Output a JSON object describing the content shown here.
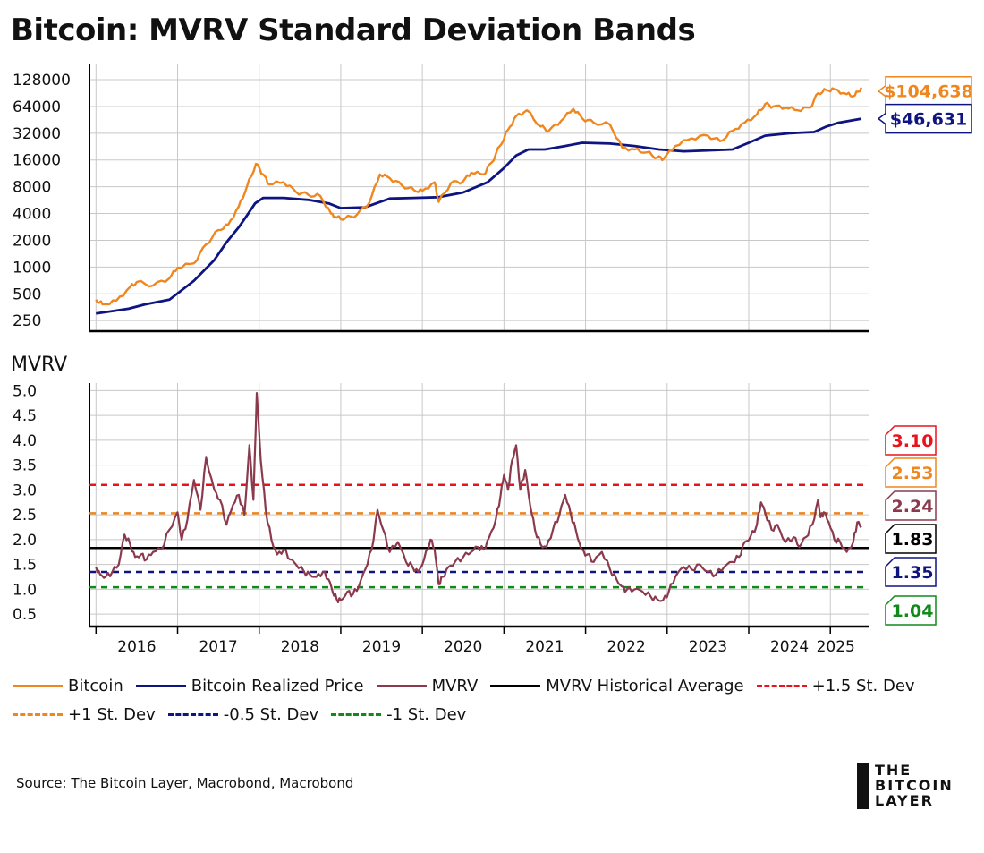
{
  "title": "Bitcoin: MVRV Standard Deviation Bands",
  "colors": {
    "bitcoin": "#F0861E",
    "realized": "#0E1480",
    "mvrv": "#8B3A4E",
    "average": "#000000",
    "plus15": "#E8141C",
    "plus1": "#F0861E",
    "minus05": "#0E1480",
    "minus1": "#118A1B",
    "grid": "#C8C8C8"
  },
  "chart_data": [
    {
      "type": "line",
      "name": "price-panel",
      "yscale": "log2",
      "yticks": [
        250,
        500,
        1000,
        2000,
        4000,
        8000,
        16000,
        32000,
        64000,
        128000
      ],
      "ylim": [
        190,
        190000
      ],
      "xlim": [
        2015.92,
        2025.48
      ],
      "series": [
        {
          "name": "Bitcoin",
          "color_key": "bitcoin",
          "x": [
            2016.0,
            2016.08,
            2016.25,
            2016.42,
            2016.5,
            2016.7,
            2016.9,
            2017.0,
            2017.2,
            2017.35,
            2017.5,
            2017.62,
            2017.75,
            2017.85,
            2017.96,
            2018.05,
            2018.12,
            2018.3,
            2018.45,
            2018.6,
            2018.75,
            2018.88,
            2018.95,
            2019.05,
            2019.2,
            2019.35,
            2019.48,
            2019.6,
            2019.75,
            2019.9,
            2020.0,
            2020.15,
            2020.2,
            2020.35,
            2020.5,
            2020.6,
            2020.75,
            2020.85,
            2020.95,
            2021.05,
            2021.15,
            2021.28,
            2021.45,
            2021.55,
            2021.7,
            2021.85,
            2021.96,
            2022.1,
            2022.3,
            2022.45,
            2022.6,
            2022.75,
            2022.88,
            2022.96,
            2023.1,
            2023.3,
            2023.5,
            2023.65,
            2023.8,
            2023.95,
            2024.1,
            2024.2,
            2024.3,
            2024.45,
            2024.6,
            2024.75,
            2024.85,
            2024.95,
            2025.05,
            2025.2,
            2025.3,
            2025.38
          ],
          "values": [
            430,
            380,
            420,
            600,
            680,
            620,
            750,
            980,
            1100,
            1800,
            2600,
            3000,
            4800,
            8000,
            14500,
            11000,
            8500,
            9000,
            7000,
            6500,
            6300,
            4000,
            3600,
            3500,
            3900,
            5300,
            11000,
            10000,
            8300,
            7300,
            7200,
            9000,
            5400,
            8800,
            9200,
            11500,
            11000,
            15000,
            23000,
            35000,
            50000,
            58000,
            38000,
            34000,
            44000,
            60000,
            47000,
            42000,
            40000,
            22000,
            21000,
            19500,
            17000,
            16600,
            23000,
            28000,
            30000,
            26000,
            34000,
            42000,
            52000,
            68000,
            64000,
            62000,
            58000,
            62000,
            90000,
            98000,
            100000,
            88000,
            85000,
            104638
          ]
        },
        {
          "name": "Bitcoin Realized Price",
          "color_key": "realized",
          "x": [
            2016.0,
            2016.4,
            2016.6,
            2016.9,
            2017.2,
            2017.45,
            2017.6,
            2017.75,
            2017.85,
            2017.95,
            2018.05,
            2018.3,
            2018.6,
            2018.85,
            2019.0,
            2019.3,
            2019.6,
            2019.9,
            2020.2,
            2020.5,
            2020.8,
            2021.0,
            2021.15,
            2021.3,
            2021.5,
            2021.75,
            2021.96,
            2022.3,
            2022.6,
            2022.9,
            2023.2,
            2023.5,
            2023.8,
            2024.0,
            2024.2,
            2024.5,
            2024.8,
            2024.95,
            2025.1,
            2025.38
          ],
          "values": [
            300,
            340,
            380,
            430,
            700,
            1200,
            1900,
            2800,
            3800,
            5200,
            6000,
            6000,
            5700,
            5200,
            4600,
            4700,
            5900,
            6000,
            6100,
            6900,
            9000,
            13000,
            18000,
            21000,
            21000,
            23000,
            25000,
            24500,
            23000,
            21000,
            20000,
            20500,
            21000,
            25000,
            30000,
            32000,
            33000,
            38000,
            42000,
            46631
          ]
        }
      ],
      "callouts": [
        {
          "label": "$104,638",
          "value": 104638,
          "color_key": "bitcoin"
        },
        {
          "label": "$46,631",
          "value": 46631,
          "color_key": "realized"
        }
      ]
    },
    {
      "type": "line",
      "name": "mvrv-panel",
      "ylabel": "MVRV",
      "yticks": [
        "0.5",
        "1.0",
        "1.5",
        "2.0",
        "2.5",
        "3.0",
        "3.5",
        "4.0",
        "4.5",
        "5.0"
      ],
      "ylim": [
        0.25,
        5.15
      ],
      "xlim": [
        2015.92,
        2025.48
      ],
      "xticks": [
        "2016",
        "2017",
        "2018",
        "2019",
        "2020",
        "2021",
        "2022",
        "2023",
        "2024",
        "2025"
      ],
      "hlines": [
        {
          "name": "+1.5 St. Dev",
          "value": 3.1,
          "label": "3.10",
          "color_key": "plus15",
          "dashed": true
        },
        {
          "name": "+1 St. Dev",
          "value": 2.53,
          "label": "2.53",
          "color_key": "plus1",
          "dashed": true
        },
        {
          "name": "MVRV Historical Average",
          "value": 1.83,
          "label": "1.83",
          "color_key": "average",
          "dashed": false
        },
        {
          "name": "-0.5 St. Dev",
          "value": 1.35,
          "label": "1.35",
          "color_key": "minus05",
          "dashed": true
        },
        {
          "name": "-1 St. Dev",
          "value": 1.04,
          "label": "1.04",
          "color_key": "minus1",
          "dashed": true
        }
      ],
      "series": [
        {
          "name": "MVRV",
          "color_key": "mvrv",
          "x": [
            2016.0,
            2016.05,
            2016.12,
            2016.2,
            2016.28,
            2016.35,
            2016.42,
            2016.48,
            2016.55,
            2016.62,
            2016.7,
            2016.8,
            2016.9,
            2017.0,
            2017.05,
            2017.12,
            2017.2,
            2017.28,
            2017.35,
            2017.45,
            2017.52,
            2017.6,
            2017.68,
            2017.75,
            2017.82,
            2017.88,
            2017.93,
            2017.97,
            2018.02,
            2018.08,
            2018.15,
            2018.22,
            2018.3,
            2018.38,
            2018.45,
            2018.55,
            2018.62,
            2018.7,
            2018.78,
            2018.85,
            2018.9,
            2018.95,
            2019.0,
            2019.08,
            2019.15,
            2019.22,
            2019.3,
            2019.38,
            2019.45,
            2019.52,
            2019.6,
            2019.7,
            2019.8,
            2019.88,
            2019.95,
            2020.02,
            2020.1,
            2020.15,
            2020.2,
            2020.25,
            2020.32,
            2020.4,
            2020.5,
            2020.6,
            2020.68,
            2020.75,
            2020.82,
            2020.9,
            2020.96,
            2021.0,
            2021.05,
            2021.1,
            2021.15,
            2021.2,
            2021.26,
            2021.32,
            2021.38,
            2021.45,
            2021.52,
            2021.6,
            2021.68,
            2021.75,
            2021.82,
            2021.88,
            2021.95,
            2022.02,
            2022.1,
            2022.2,
            2022.3,
            2022.38,
            2022.45,
            2022.5,
            2022.6,
            2022.7,
            2022.8,
            2022.88,
            2022.95,
            2023.02,
            2023.1,
            2023.2,
            2023.3,
            2023.4,
            2023.5,
            2023.6,
            2023.7,
            2023.8,
            2023.88,
            2023.95,
            2024.02,
            2024.1,
            2024.15,
            2024.2,
            2024.28,
            2024.35,
            2024.45,
            2024.55,
            2024.62,
            2024.7,
            2024.78,
            2024.85,
            2024.88,
            2024.92,
            2024.98,
            2025.05,
            2025.12,
            2025.2,
            2025.28,
            2025.33,
            2025.38
          ],
          "values": [
            1.45,
            1.3,
            1.25,
            1.35,
            1.5,
            2.1,
            1.9,
            1.65,
            1.7,
            1.6,
            1.75,
            1.8,
            2.2,
            2.55,
            2.0,
            2.4,
            3.2,
            2.6,
            3.65,
            3.0,
            2.8,
            2.3,
            2.7,
            2.9,
            2.5,
            3.9,
            2.8,
            4.95,
            3.6,
            2.6,
            2.0,
            1.7,
            1.8,
            1.6,
            1.5,
            1.35,
            1.3,
            1.25,
            1.35,
            1.2,
            0.95,
            0.8,
            0.78,
            0.95,
            0.9,
            1.05,
            1.4,
            1.8,
            2.6,
            2.2,
            1.75,
            1.95,
            1.55,
            1.45,
            1.35,
            1.6,
            2.0,
            1.8,
            1.1,
            1.25,
            1.45,
            1.55,
            1.65,
            1.75,
            1.85,
            1.8,
            2.05,
            2.4,
            2.9,
            3.3,
            3.0,
            3.6,
            3.9,
            3.0,
            3.4,
            2.7,
            2.2,
            1.9,
            1.85,
            2.2,
            2.5,
            2.9,
            2.5,
            2.2,
            1.8,
            1.7,
            1.55,
            1.75,
            1.4,
            1.2,
            1.05,
            0.98,
            1.0,
            0.95,
            0.85,
            0.8,
            0.78,
            0.95,
            1.25,
            1.45,
            1.4,
            1.5,
            1.35,
            1.3,
            1.45,
            1.55,
            1.65,
            1.95,
            2.05,
            2.3,
            2.75,
            2.55,
            2.2,
            2.3,
            1.95,
            2.05,
            1.85,
            2.05,
            2.3,
            2.8,
            2.45,
            2.55,
            2.35,
            2.0,
            1.95,
            1.75,
            1.95,
            2.35,
            2.24
          ]
        }
      ],
      "callouts": [
        {
          "label": "3.10",
          "color_key": "plus15"
        },
        {
          "label": "2.53",
          "color_key": "plus1"
        },
        {
          "label": "2.24",
          "color_key": "mvrv"
        },
        {
          "label": "1.83",
          "color_key": "average"
        },
        {
          "label": "1.35",
          "color_key": "minus05"
        },
        {
          "label": "1.04",
          "color_key": "minus1"
        }
      ]
    }
  ],
  "legend": {
    "row1": [
      {
        "label": "Bitcoin",
        "color_key": "bitcoin",
        "dashed": false
      },
      {
        "label": "Bitcoin Realized Price",
        "color_key": "realized",
        "dashed": false
      },
      {
        "label": "MVRV",
        "color_key": "mvrv",
        "dashed": false
      },
      {
        "label": "MVRV Historical Average",
        "color_key": "average",
        "dashed": false
      },
      {
        "label": "+1.5 St. Dev",
        "color_key": "plus15",
        "dashed": true
      }
    ],
    "row2": [
      {
        "label": "+1 St. Dev",
        "color_key": "plus1",
        "dashed": true
      },
      {
        "label": "-0.5 St. Dev",
        "color_key": "minus05",
        "dashed": true
      },
      {
        "label": "-1 St. Dev",
        "color_key": "minus1",
        "dashed": true
      }
    ]
  },
  "source": "Source: The Bitcoin Layer, Macrobond, Macrobond",
  "brand": {
    "line1": "THE",
    "line2": "BITCOIN",
    "line3": "LAYER"
  }
}
